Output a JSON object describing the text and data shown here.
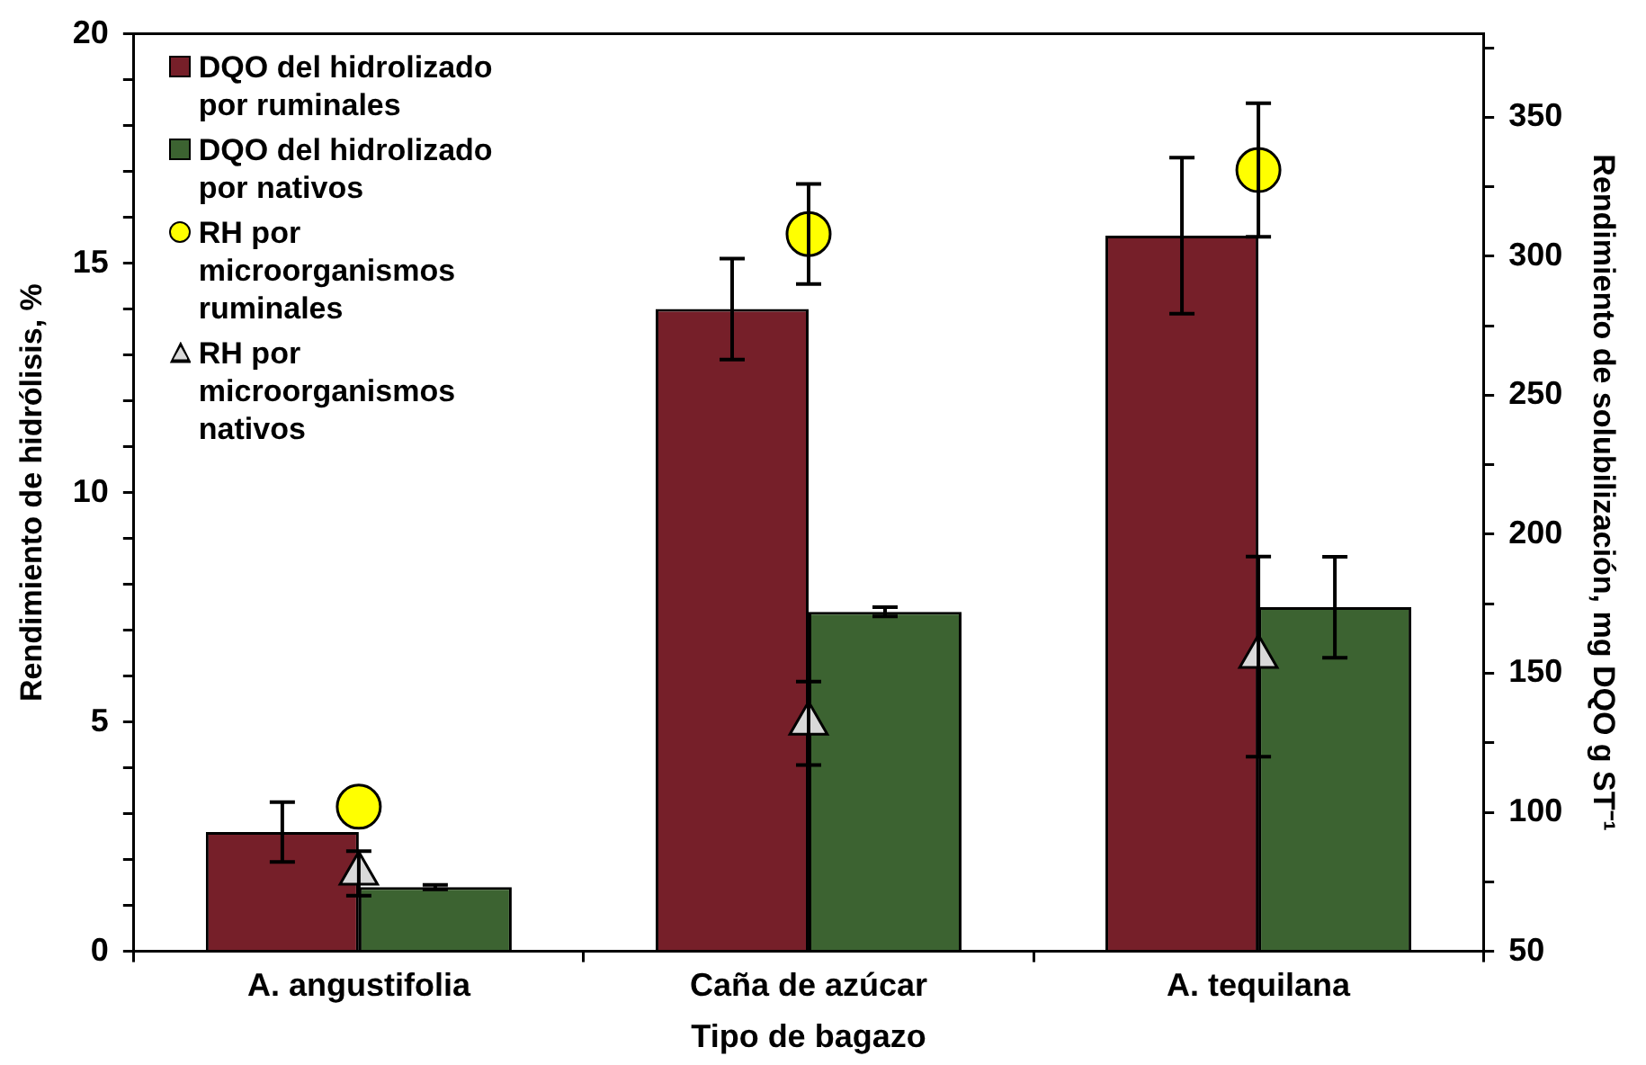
{
  "chart_data": {
    "type": "bar",
    "xlabel": "Tipo de bagazo",
    "ylabel": "Rendimiento de hidrólisis, %",
    "y2label": "Rendimiento de solubilización, mg DQO g ST⁻¹",
    "categories": [
      "A. angustifolia",
      "Caña de azúcar",
      "A. tequilana"
    ],
    "series": [
      {
        "name": "DQO del hidrolizado por ruminales",
        "color": "#761f29",
        "values": [
          2.6,
          14.0,
          15.6
        ],
        "errors": [
          0.65,
          1.1,
          1.7
        ]
      },
      {
        "name": "DQO del hidrolizado por nativos",
        "color": "#3c6331",
        "values": [
          1.4,
          7.4,
          7.5
        ],
        "errors": [
          0.05,
          0.1,
          1.1
        ]
      },
      {
        "name": "RH por microorganismos ruminales",
        "type": "scatter",
        "axis": "y2",
        "marker": "circle",
        "color": "#ffff00",
        "x": [
          "A. angustifolia",
          "Caña de azúcar",
          "A. tequilana"
        ],
        "values": [
          102,
          308,
          331
        ],
        "errors": [
          null,
          18,
          24
        ]
      },
      {
        "name": "RH por microorganismos nativos",
        "type": "scatter",
        "axis": "y2",
        "marker": "triangle",
        "color": "#d9d9d9",
        "x": [
          "A. angustifolia",
          "Caña de azúcar",
          "A. tequilana"
        ],
        "values": [
          78,
          132,
          156
        ],
        "errors": [
          8,
          15,
          36
        ]
      }
    ],
    "ylim": [
      0,
      20
    ],
    "yticks": [
      0,
      {
        "value": 1,
        "label": null
      },
      {
        "value": 2,
        "label": null
      },
      {
        "value": 3,
        "label": null
      },
      {
        "value": 4,
        "label": null
      },
      5,
      {
        "value": 6,
        "label": null
      },
      {
        "value": 7,
        "label": null
      },
      {
        "value": 8,
        "label": null
      },
      {
        "value": 9,
        "label": null
      },
      10,
      {
        "value": 11,
        "label": null
      },
      {
        "value": 12,
        "label": null
      },
      {
        "value": 13,
        "label": null
      },
      {
        "value": 14,
        "label": null
      },
      15,
      {
        "value": 16,
        "label": null
      },
      {
        "value": 17,
        "label": null
      },
      {
        "value": 18,
        "label": null
      },
      {
        "value": 19,
        "label": null
      },
      20
    ],
    "y2lim": [
      50,
      380
    ],
    "y2ticks": [
      50,
      {
        "value": 75,
        "label": null
      },
      100,
      {
        "value": 125,
        "label": null
      },
      150,
      {
        "value": 175,
        "label": null
      },
      200,
      {
        "value": 225,
        "label": null
      },
      250,
      {
        "value": 275,
        "label": null
      },
      300,
      {
        "value": 325,
        "label": null
      },
      350,
      {
        "value": 375,
        "label": null
      }
    ],
    "grid": false,
    "legend": "top left"
  }
}
